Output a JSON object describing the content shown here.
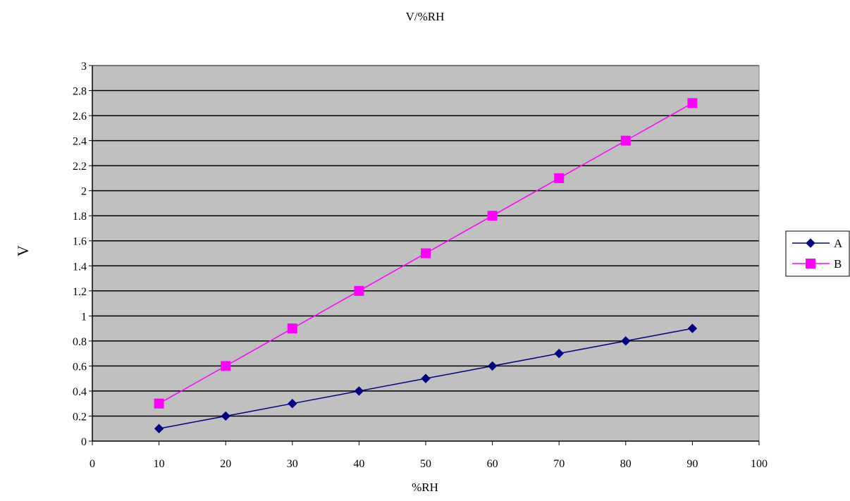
{
  "chart_data": {
    "type": "line",
    "title": "V/%RH",
    "xlabel": "%RH",
    "ylabel": "V",
    "xlim": [
      0,
      100
    ],
    "ylim": [
      0,
      3
    ],
    "x_ticks": [
      0,
      10,
      20,
      30,
      40,
      50,
      60,
      70,
      80,
      90,
      100
    ],
    "y_ticks": [
      0,
      0.2,
      0.4,
      0.6,
      0.8,
      1,
      1.2,
      1.4,
      1.6,
      1.8,
      2,
      2.2,
      2.4,
      2.6,
      2.8,
      3
    ],
    "grid": "horizontal",
    "plot_background": "#C0C0C0",
    "legend": {
      "position": "right"
    },
    "x": [
      10,
      20,
      30,
      40,
      50,
      60,
      70,
      80,
      90
    ],
    "series": [
      {
        "name": "A",
        "color": "#000080",
        "marker": "diamond",
        "values": [
          0.1,
          0.2,
          0.3,
          0.4,
          0.5,
          0.6,
          0.7,
          0.8,
          0.9
        ]
      },
      {
        "name": "B",
        "color": "#FF00FF",
        "marker": "square",
        "values": [
          0.3,
          0.6,
          0.9,
          1.2,
          1.5,
          1.8,
          2.1,
          2.4,
          2.7
        ]
      }
    ]
  }
}
